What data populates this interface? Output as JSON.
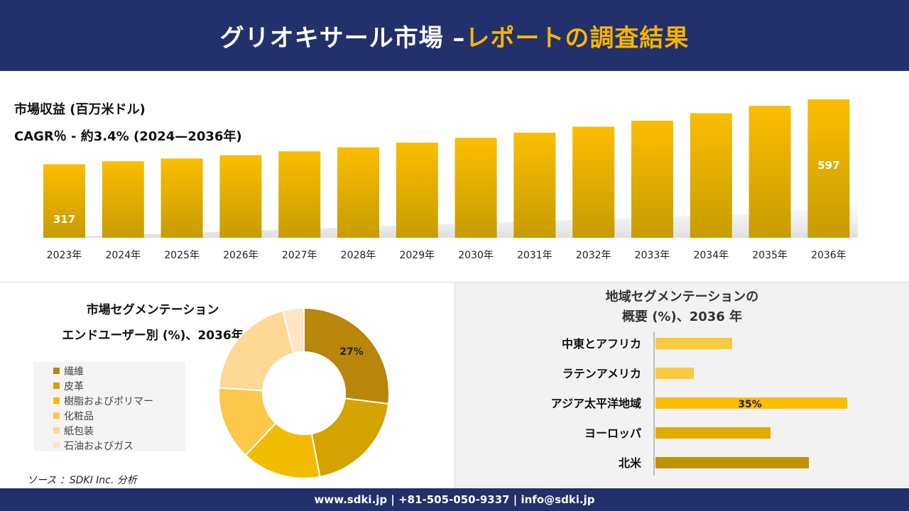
{
  "header": {
    "title_main": "グリオキサール市場 –",
    "title_accent": "レポートの調査結果"
  },
  "revenue": {
    "title": "市場収益 (百万米ドル)",
    "cagr": "CAGR％ - 約3.4% (2024—2036年)"
  },
  "segment": {
    "title_line1": "市場セグメンテーション",
    "title_line2": "エンドユーザー別 (%)、2036年"
  },
  "region": {
    "title_line1": "地域セグメンテーションの",
    "title_line2": "概要 (%)、2036 年"
  },
  "source": "ソース ：SDKI Inc. 分析",
  "footer": {
    "contact": "www.sdki.jp | +81-505-050-9337 | info@sdki.jp"
  },
  "colors": {
    "header_bg": "#22306b",
    "accent": "#f8b400",
    "bar_dark": "#c79c00",
    "bar_light": "#fbbd00"
  },
  "chart_data": [
    {
      "type": "bar",
      "categories": [
        "2023年",
        "2024年",
        "2025年",
        "2026年",
        "2027年",
        "2028年",
        "2029年",
        "2030年",
        "2031年",
        "2032年",
        "2033年",
        "2034年",
        "2035年",
        "2036年"
      ],
      "values": [
        317,
        330,
        342,
        356,
        373,
        390,
        410,
        431,
        453,
        479,
        505,
        537,
        569,
        597
      ],
      "data_labels": {
        "first": "317",
        "last": "597"
      },
      "title": "市場収益 (百万米ドル)",
      "subtitle": "CAGR％ - 約3.4% (2024—2036年)",
      "xlabel": "",
      "ylabel": "",
      "ylim": [
        0,
        620
      ],
      "grid": false
    },
    {
      "type": "pie",
      "title": "市場セグメンテーション エンドユーザー別 (%)、2036年",
      "labels": [
        "繊維",
        "皮革",
        "樹脂およびポリマー",
        "化粧品",
        "紙包装",
        "石油およびガス"
      ],
      "values": [
        27,
        20,
        15,
        14,
        20,
        4
      ],
      "colors": [
        "#b8860b",
        "#d4a300",
        "#f2bc00",
        "#fcc84a",
        "#fdd995",
        "#fde6c4"
      ],
      "data_label": "27%",
      "legend_position": "left",
      "donut": true
    },
    {
      "type": "bar",
      "orientation": "horizontal",
      "title": "地域セグメンテーションの 概要 (%)、2036 年",
      "categories": [
        "中東とアフリカ",
        "ラテンアメリカ",
        "アジア太平洋地域",
        "ヨーロッパ",
        "北米"
      ],
      "values": [
        14,
        7,
        35,
        21,
        28
      ],
      "colors": [
        "#fbc93d",
        "#fbc93d",
        "#fbbd00",
        "#e2aa00",
        "#c39200"
      ],
      "data_label": "35%",
      "xlim": [
        0,
        36
      ],
      "grid": false
    }
  ]
}
